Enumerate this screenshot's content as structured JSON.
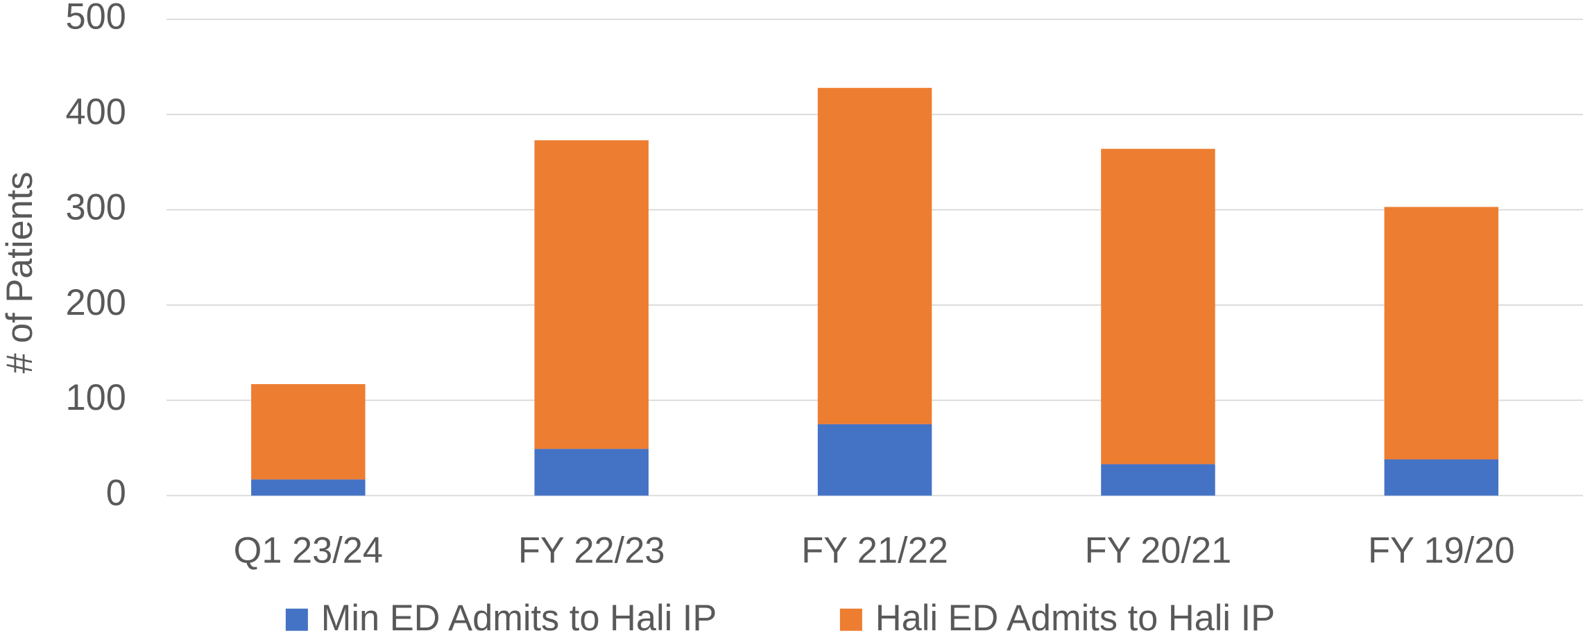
{
  "chart_data": {
    "type": "stacked_bar",
    "y_label": "# of Patients",
    "categories": [
      "Q1 23/24",
      "FY 22/23",
      "FY 21/22",
      "FY 20/21",
      "FY 19/20"
    ],
    "series": [
      {
        "name": "Min ED Admits to Hali IP",
        "color": "#4472c4",
        "values": [
          17,
          49,
          75,
          33,
          38
        ]
      },
      {
        "name": "Hali ED Admits to Hali IP",
        "color": "#ed7d31",
        "values": [
          100,
          324,
          353,
          331,
          265
        ]
      }
    ],
    "ylim": [
      0,
      500
    ],
    "yticks": [
      0,
      100,
      200,
      300,
      400,
      500
    ],
    "grid": true,
    "legend": "bottom"
  }
}
